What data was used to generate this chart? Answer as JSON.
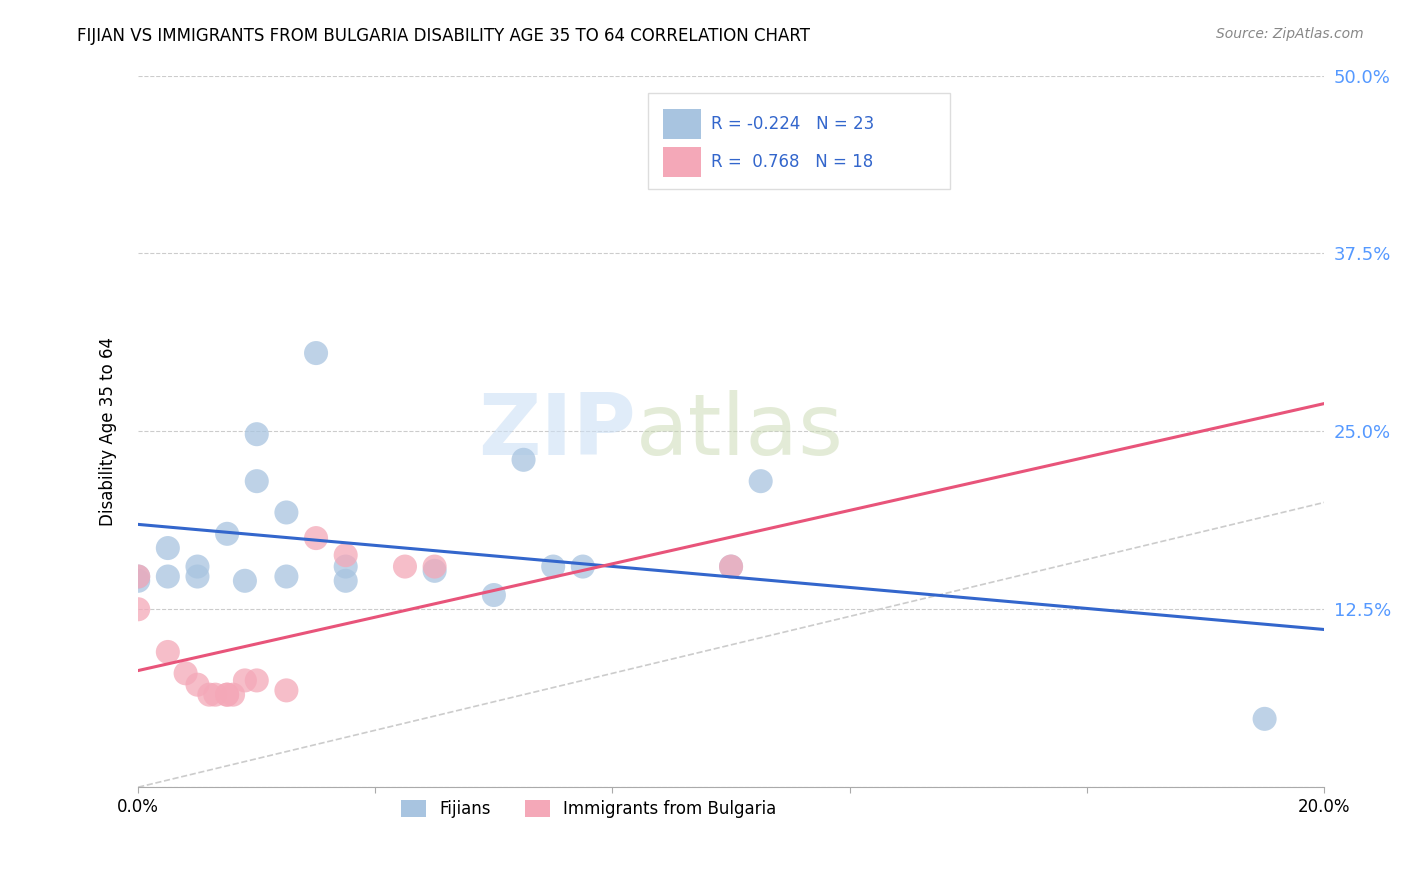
{
  "title": "FIJIAN VS IMMIGRANTS FROM BULGARIA DISABILITY AGE 35 TO 64 CORRELATION CHART",
  "source": "Source: ZipAtlas.com",
  "ylabel": "Disability Age 35 to 64",
  "x_min": 0.0,
  "x_max": 0.2,
  "y_min": 0.0,
  "y_max": 0.5,
  "x_ticks": [
    0.0,
    0.04,
    0.08,
    0.12,
    0.16,
    0.2
  ],
  "x_ticklabels": [
    "0.0%",
    "",
    "",
    "",
    "",
    "20.0%"
  ],
  "y_ticks": [
    0.0,
    0.125,
    0.25,
    0.375,
    0.5
  ],
  "y_ticklabels": [
    "",
    "12.5%",
    "25.0%",
    "37.5%",
    "50.0%"
  ],
  "fijian_R": -0.224,
  "fijian_N": 23,
  "bulgaria_R": 0.768,
  "bulgaria_N": 18,
  "fijian_color": "#a8c4e0",
  "bulgaria_color": "#f4a8b8",
  "fijian_line_color": "#3366cc",
  "bulgaria_line_color": "#e8547a",
  "diagonal_color": "#cccccc",
  "fijian_points": [
    [
      0.0,
      0.148
    ],
    [
      0.0,
      0.145
    ],
    [
      0.005,
      0.168
    ],
    [
      0.005,
      0.148
    ],
    [
      0.01,
      0.155
    ],
    [
      0.01,
      0.148
    ],
    [
      0.015,
      0.178
    ],
    [
      0.018,
      0.145
    ],
    [
      0.02,
      0.248
    ],
    [
      0.02,
      0.215
    ],
    [
      0.025,
      0.193
    ],
    [
      0.025,
      0.148
    ],
    [
      0.03,
      0.305
    ],
    [
      0.035,
      0.155
    ],
    [
      0.035,
      0.145
    ],
    [
      0.05,
      0.152
    ],
    [
      0.06,
      0.135
    ],
    [
      0.065,
      0.23
    ],
    [
      0.07,
      0.155
    ],
    [
      0.075,
      0.155
    ],
    [
      0.1,
      0.155
    ],
    [
      0.105,
      0.215
    ],
    [
      0.19,
      0.048
    ]
  ],
  "bulgaria_points": [
    [
      0.0,
      0.148
    ],
    [
      0.0,
      0.125
    ],
    [
      0.005,
      0.095
    ],
    [
      0.008,
      0.08
    ],
    [
      0.01,
      0.072
    ],
    [
      0.012,
      0.065
    ],
    [
      0.013,
      0.065
    ],
    [
      0.015,
      0.065
    ],
    [
      0.015,
      0.065
    ],
    [
      0.016,
      0.065
    ],
    [
      0.018,
      0.075
    ],
    [
      0.02,
      0.075
    ],
    [
      0.025,
      0.068
    ],
    [
      0.03,
      0.175
    ],
    [
      0.035,
      0.163
    ],
    [
      0.045,
      0.155
    ],
    [
      0.05,
      0.155
    ],
    [
      0.1,
      0.155
    ]
  ],
  "watermark_line1": "ZIP",
  "watermark_line2": "atlas",
  "legend_entries": [
    "Fijians",
    "Immigrants from Bulgaria"
  ]
}
